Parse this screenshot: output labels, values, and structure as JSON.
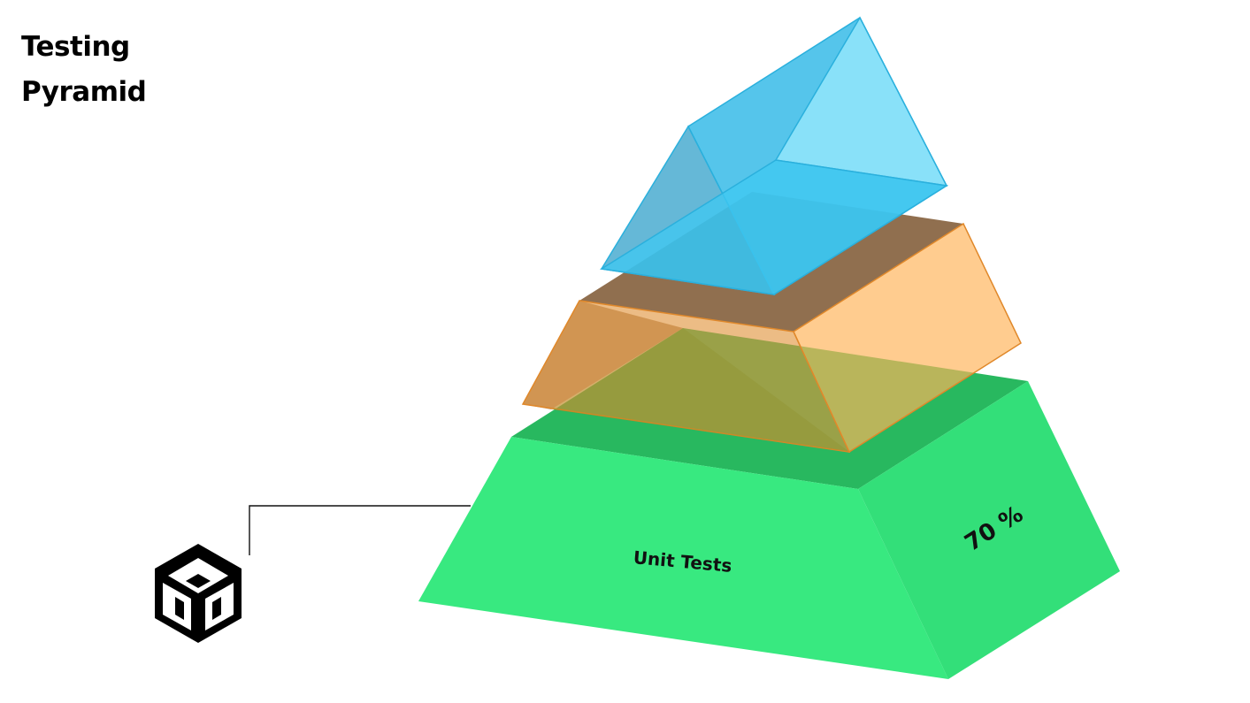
{
  "title": {
    "line1": "Testing",
    "line2": "Pyramid"
  },
  "layers": {
    "top": {
      "color": "#3fc1ea",
      "stroke": "#2aa9d8"
    },
    "middle": {
      "color": "#f0a24a",
      "stroke": "#e08a2a"
    },
    "bottom": {
      "label": "Unit Tests",
      "percent": "70 %",
      "color": "#36e67f"
    }
  },
  "icon": {
    "name": "unity-cube-icon"
  }
}
